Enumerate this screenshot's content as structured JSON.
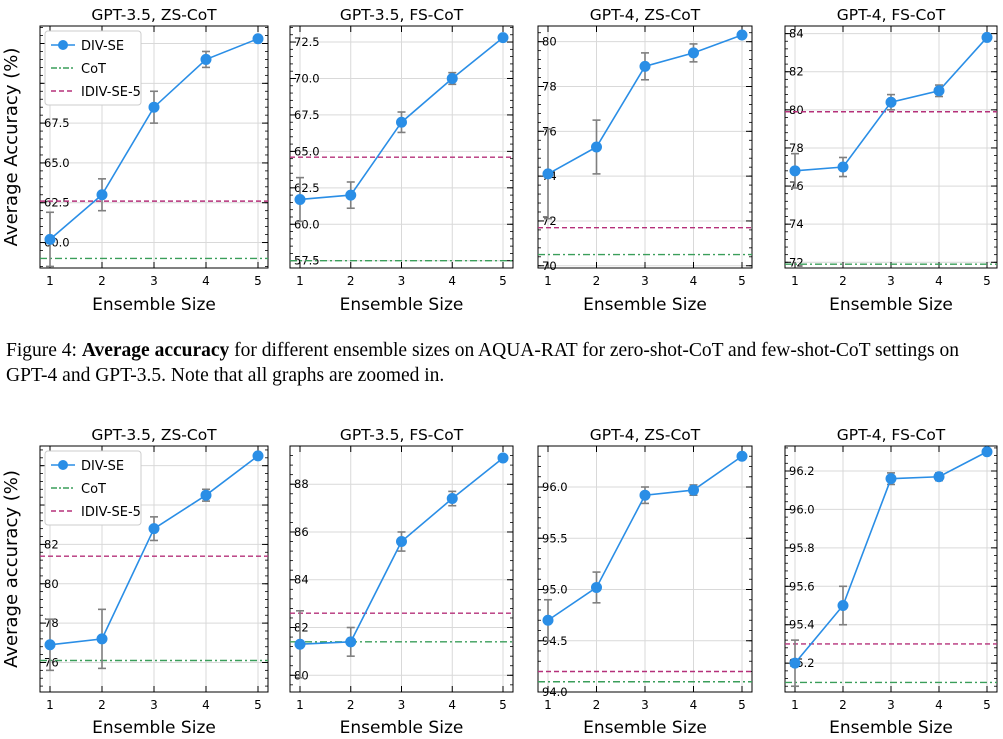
{
  "figures": [
    {
      "ylabel": "Average Accuracy (%)",
      "legend": [
        "DIV-SE",
        "CoT",
        "IDIV-SE-5"
      ],
      "chart_data": [
        {
          "type": "line",
          "title": "GPT-3.5, ZS-CoT",
          "xlabel": "Ensemble Size",
          "x": [
            1,
            2,
            3,
            4,
            5
          ],
          "series": [
            {
              "name": "DIV-SE",
              "values": [
                60.2,
                63.0,
                68.5,
                71.5,
                72.8
              ],
              "err": [
                1.7,
                1.0,
                1.0,
                0.5,
                0.1
              ]
            }
          ],
          "hlines": {
            "CoT": 59.0,
            "IDIV-SE-5": 62.6
          },
          "ylim": [
            58.4,
            73.6
          ],
          "yticks": [
            "60.0",
            "62.5",
            "65.0",
            "67.5",
            "70.0",
            "72.5"
          ],
          "ytick_values": [
            60,
            62.5,
            65,
            67.5,
            70,
            72.5
          ]
        },
        {
          "type": "line",
          "title": "GPT-3.5, FS-CoT",
          "xlabel": "Ensemble Size",
          "x": [
            1,
            2,
            3,
            4,
            5
          ],
          "series": [
            {
              "name": "DIV-SE",
              "values": [
                61.7,
                62.0,
                67.0,
                70.0,
                72.8
              ],
              "err": [
                1.5,
                0.9,
                0.7,
                0.4,
                0.1
              ]
            }
          ],
          "hlines": {
            "CoT": 57.5,
            "IDIV-SE-5": 64.6
          },
          "ylim": [
            57.0,
            73.6
          ],
          "yticks": [
            "57.5",
            "60.0",
            "62.5",
            "65.0",
            "67.5",
            "70.0",
            "72.5"
          ],
          "ytick_values": [
            57.5,
            60,
            62.5,
            65,
            67.5,
            70,
            72.5
          ]
        },
        {
          "type": "line",
          "title": "GPT-4, ZS-CoT",
          "xlabel": "Ensemble Size",
          "x": [
            1,
            2,
            3,
            4,
            5
          ],
          "series": [
            {
              "name": "DIV-SE",
              "values": [
                74.1,
                75.3,
                78.9,
                79.5,
                80.3
              ],
              "err": [
                2.0,
                1.2,
                0.6,
                0.4,
                0.05
              ]
            }
          ],
          "hlines": {
            "CoT": 70.5,
            "IDIV-SE-5": 71.7
          },
          "ylim": [
            69.9,
            80.7
          ],
          "yticks": [
            "70",
            "72",
            "74",
            "76",
            "78",
            "80"
          ],
          "ytick_values": [
            70,
            72,
            74,
            76,
            78,
            80
          ]
        },
        {
          "type": "line",
          "title": "GPT-4, FS-CoT",
          "xlabel": "Ensemble Size",
          "x": [
            1,
            2,
            3,
            4,
            5
          ],
          "series": [
            {
              "name": "DIV-SE",
              "values": [
                76.8,
                77.0,
                80.4,
                81.0,
                83.8
              ],
              "err": [
                0.9,
                0.5,
                0.4,
                0.3,
                0.05
              ]
            }
          ],
          "hlines": {
            "CoT": 71.9,
            "IDIV-SE-5": 79.9
          },
          "ylim": [
            71.7,
            84.4
          ],
          "yticks": [
            "72",
            "74",
            "76",
            "78",
            "80",
            "82",
            "84"
          ],
          "ytick_values": [
            72,
            74,
            76,
            78,
            80,
            82,
            84
          ]
        }
      ]
    },
    {
      "ylabel": "Average accuracy (%)",
      "legend": [
        "DIV-SE",
        "CoT",
        "IDIV-SE-5"
      ],
      "chart_data": [
        {
          "type": "line",
          "title": "GPT-3.5, ZS-CoT",
          "xlabel": "Ensemble Size",
          "x": [
            1,
            2,
            3,
            4,
            5
          ],
          "series": [
            {
              "name": "DIV-SE",
              "values": [
                76.9,
                77.2,
                82.8,
                84.5,
                86.5
              ],
              "err": [
                1.3,
                1.5,
                0.6,
                0.3,
                0.05
              ]
            }
          ],
          "hlines": {
            "CoT": 76.1,
            "IDIV-SE-5": 81.4
          },
          "ylim": [
            74.5,
            87.0
          ],
          "yticks": [
            "76",
            "78",
            "80",
            "82",
            "84",
            "86"
          ],
          "ytick_values": [
            76,
            78,
            80,
            82,
            84,
            86
          ]
        },
        {
          "type": "line",
          "title": "GPT-3.5, FS-CoT",
          "xlabel": "Ensemble Size",
          "x": [
            1,
            2,
            3,
            4,
            5
          ],
          "series": [
            {
              "name": "DIV-SE",
              "values": [
                81.3,
                81.4,
                85.6,
                87.4,
                89.1
              ],
              "err": [
                1.4,
                0.6,
                0.4,
                0.3,
                0.05
              ]
            }
          ],
          "hlines": {
            "CoT": 81.4,
            "IDIV-SE-5": 82.6
          },
          "ylim": [
            79.3,
            89.6
          ],
          "yticks": [
            "80",
            "82",
            "84",
            "86",
            "88"
          ],
          "ytick_values": [
            80,
            82,
            84,
            86,
            88
          ]
        },
        {
          "type": "line",
          "title": "GPT-4, ZS-CoT",
          "xlabel": "Ensemble Size",
          "x": [
            1,
            2,
            3,
            4,
            5
          ],
          "series": [
            {
              "name": "DIV-SE",
              "values": [
                94.7,
                95.02,
                95.92,
                95.97,
                96.3
              ],
              "err": [
                0.2,
                0.15,
                0.08,
                0.05,
                0.01
              ]
            }
          ],
          "hlines": {
            "CoT": 94.1,
            "IDIV-SE-5": 94.2
          },
          "ylim": [
            94.0,
            96.4
          ],
          "yticks": [
            "94.0",
            "94.5",
            "95.0",
            "95.5",
            "96.0"
          ],
          "ytick_values": [
            94.0,
            94.5,
            95.0,
            95.5,
            96.0
          ]
        },
        {
          "type": "line",
          "title": "GPT-4, FS-CoT",
          "xlabel": "Ensemble Size",
          "x": [
            1,
            2,
            3,
            4,
            5
          ],
          "series": [
            {
              "name": "DIV-SE",
              "values": [
                95.2,
                95.5,
                96.16,
                96.17,
                96.3
              ],
              "err": [
                0.12,
                0.1,
                0.03,
                0.02,
                0.01
              ]
            }
          ],
          "hlines": {
            "CoT": 95.1,
            "IDIV-SE-5": 95.3
          },
          "ylim": [
            95.05,
            96.33
          ],
          "yticks": [
            "95.2",
            "95.4",
            "95.6",
            "95.8",
            "96.0",
            "96.2"
          ],
          "ytick_values": [
            95.2,
            95.4,
            95.6,
            95.8,
            96.0,
            96.2
          ]
        }
      ]
    }
  ],
  "caption": {
    "prefix": "Figure 4: ",
    "bold": "Average accuracy",
    "rest": " for different ensemble sizes on AQUA-RAT for zero-shot-CoT and few-shot-CoT settings on GPT-4 and GPT-3.5. Note that all graphs are zoomed in."
  },
  "colors": {
    "div_se": "#2a8ee6",
    "cot": "#3a9e5a",
    "idiv": "#b5307a",
    "err": "#7f7f7f",
    "grid": "#d9d9d9"
  }
}
